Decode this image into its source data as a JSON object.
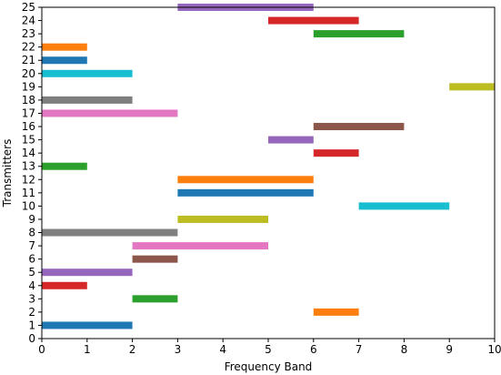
{
  "chart_data": {
    "type": "bar",
    "orientation": "horizontal-range",
    "title": "",
    "xlabel": "Frequency Band",
    "ylabel": "Transmitters",
    "xlim": [
      0,
      10
    ],
    "ylim": [
      0,
      25
    ],
    "grid": false,
    "xticks": [
      "0",
      "1",
      "2",
      "3",
      "4",
      "5",
      "6",
      "7",
      "8",
      "9",
      "10"
    ],
    "yticks": [
      "0",
      "1",
      "2",
      "3",
      "4",
      "5",
      "6",
      "7",
      "8",
      "9",
      "10",
      "11",
      "12",
      "13",
      "14",
      "15",
      "16",
      "17",
      "18",
      "19",
      "20",
      "21",
      "22",
      "23",
      "24",
      "25"
    ],
    "bars": [
      {
        "transmitter": 1,
        "start": 0,
        "end": 2,
        "color": "#1f77b4"
      },
      {
        "transmitter": 2,
        "start": 6,
        "end": 7,
        "color": "#ff7f0e"
      },
      {
        "transmitter": 3,
        "start": 2,
        "end": 3,
        "color": "#2ca02c"
      },
      {
        "transmitter": 4,
        "start": 0,
        "end": 1,
        "color": "#d62728"
      },
      {
        "transmitter": 5,
        "start": 0,
        "end": 2,
        "color": "#9467bd"
      },
      {
        "transmitter": 6,
        "start": 2,
        "end": 3,
        "color": "#8c564b"
      },
      {
        "transmitter": 7,
        "start": 2,
        "end": 5,
        "color": "#e377c2"
      },
      {
        "transmitter": 8,
        "start": 0,
        "end": 3,
        "color": "#7f7f7f"
      },
      {
        "transmitter": 9,
        "start": 3,
        "end": 5,
        "color": "#bcbd22"
      },
      {
        "transmitter": 10,
        "start": 7,
        "end": 9,
        "color": "#17becf"
      },
      {
        "transmitter": 11,
        "start": 3,
        "end": 6,
        "color": "#1f77b4"
      },
      {
        "transmitter": 12,
        "start": 3,
        "end": 6,
        "color": "#ff7f0e"
      },
      {
        "transmitter": 13,
        "start": 0,
        "end": 1,
        "color": "#2ca02c"
      },
      {
        "transmitter": 14,
        "start": 6,
        "end": 7,
        "color": "#d62728"
      },
      {
        "transmitter": 15,
        "start": 5,
        "end": 6,
        "color": "#9467bd"
      },
      {
        "transmitter": 16,
        "start": 6,
        "end": 8,
        "color": "#8c564b"
      },
      {
        "transmitter": 17,
        "start": 0,
        "end": 3,
        "color": "#e377c2"
      },
      {
        "transmitter": 18,
        "start": 0,
        "end": 2,
        "color": "#7f7f7f"
      },
      {
        "transmitter": 19,
        "start": 9,
        "end": 10,
        "color": "#bcbd22"
      },
      {
        "transmitter": 20,
        "start": 0,
        "end": 2,
        "color": "#17becf"
      },
      {
        "transmitter": 21,
        "start": 0,
        "end": 1,
        "color": "#1f77b4"
      },
      {
        "transmitter": 22,
        "start": 0,
        "end": 1,
        "color": "#ff7f0e"
      },
      {
        "transmitter": 23,
        "start": 6,
        "end": 8,
        "color": "#2ca02c"
      },
      {
        "transmitter": 24,
        "start": 5,
        "end": 7,
        "color": "#d62728"
      },
      {
        "transmitter": 25,
        "start": 3,
        "end": 6,
        "color": "#9467bd"
      }
    ]
  }
}
